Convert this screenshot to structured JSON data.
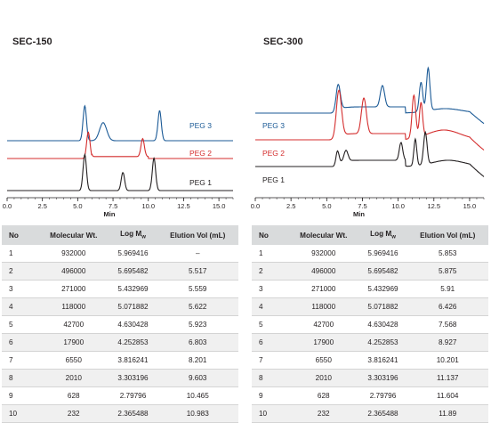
{
  "chart_data": [
    {
      "type": "line",
      "title": "SEC-150",
      "xlabel": "Min",
      "xlim": [
        0,
        16
      ],
      "x_ticks": [
        "0.0",
        "2.5",
        "5.0",
        "7.5",
        "10.0",
        "12.5",
        "15.0"
      ],
      "x_tick_values": [
        0,
        2.5,
        5,
        7.5,
        10,
        12.5,
        15
      ],
      "grid": false,
      "legend": "inline labels at right end of traces",
      "series": [
        {
          "name": "PEG 3",
          "color": "#1b5a96",
          "baseline": 3,
          "peaks": [
            [
              5.5,
              1.45,
              0.12
            ],
            [
              6.8,
              0.75,
              0.25
            ],
            [
              10.8,
              1.25,
              0.12
            ]
          ]
        },
        {
          "name": "PEG 2",
          "color": "#d42d2d",
          "baseline": 2,
          "peaks": [
            [
              5.75,
              1.1,
              0.12
            ],
            [
              9.6,
              0.75,
              0.12
            ]
          ]
        },
        {
          "name": "PEG 1",
          "color": "#231f20",
          "baseline": 0,
          "peaks": [
            [
              5.5,
              1.5,
              0.12
            ],
            [
              8.2,
              0.75,
              0.12
            ],
            [
              10.4,
              1.35,
              0.12
            ]
          ]
        }
      ]
    },
    {
      "type": "line",
      "title": "SEC-300",
      "xlabel": "Min",
      "xlim": [
        0,
        16
      ],
      "x_ticks": [
        "0.0",
        "2.5",
        "5.0",
        "7.5",
        "10.0",
        "12.5",
        "15.0"
      ],
      "x_tick_values": [
        0,
        2.5,
        5,
        7.5,
        10,
        12.5,
        15
      ],
      "grid": false,
      "legend": "inline labels at left of traces",
      "series": [
        {
          "name": "PEG 3",
          "color": "#1b5a96",
          "baseline": 4,
          "peaks": [
            [
              5.8,
              1.45,
              0.15
            ],
            [
              8.9,
              1.2,
              0.15
            ],
            [
              11.6,
              1.65,
              0.12
            ],
            [
              12.1,
              2.4,
              0.12
            ]
          ]
        },
        {
          "name": "PEG 2",
          "color": "#d42d2d",
          "baseline": 2,
          "peaks": [
            [
              5.85,
              2.6,
              0.18
            ],
            [
              7.6,
              2.0,
              0.17
            ],
            [
              11.1,
              2.4,
              0.13
            ],
            [
              11.6,
              1.9,
              0.11
            ]
          ]
        },
        {
          "name": "PEG 1",
          "color": "#231f20",
          "baseline": 0,
          "peaks": [
            [
              5.75,
              0.75,
              0.11
            ],
            [
              6.35,
              0.6,
              0.14
            ],
            [
              10.2,
              1.0,
              0.12
            ],
            [
              11.2,
              1.5,
              0.1
            ],
            [
              11.9,
              1.8,
              0.12
            ]
          ]
        }
      ]
    }
  ],
  "tables": {
    "left": {
      "headers": [
        "No",
        "Molecular Wt.",
        "Log M",
        "Elution Vol (mL)"
      ],
      "header_sub": "w",
      "rows": [
        [
          "1",
          "932000",
          "5.969416",
          "–"
        ],
        [
          "2",
          "496000",
          "5.695482",
          "5.517"
        ],
        [
          "3",
          "271000",
          "5.432969",
          "5.559"
        ],
        [
          "4",
          "118000",
          "5.071882",
          "5.622"
        ],
        [
          "5",
          "42700",
          "4.630428",
          "5.923"
        ],
        [
          "6",
          "17900",
          "4.252853",
          "6.803"
        ],
        [
          "7",
          "6550",
          "3.816241",
          "8.201"
        ],
        [
          "8",
          "2010",
          "3.303196",
          "9.603"
        ],
        [
          "9",
          "628",
          "2.79796",
          "10.465"
        ],
        [
          "10",
          "232",
          "2.365488",
          "10.983"
        ]
      ]
    },
    "right": {
      "headers": [
        "No",
        "Molecular Wt.",
        "Log M",
        "Elution Vol (mL)"
      ],
      "header_sub": "w",
      "rows": [
        [
          "1",
          "932000",
          "5.969416",
          "5.853"
        ],
        [
          "2",
          "496000",
          "5.695482",
          "5.875"
        ],
        [
          "3",
          "271000",
          "5.432969",
          "5.91"
        ],
        [
          "4",
          "118000",
          "5.071882",
          "6.426"
        ],
        [
          "5",
          "42700",
          "4.630428",
          "7.568"
        ],
        [
          "6",
          "17900",
          "4.252853",
          "8.927"
        ],
        [
          "7",
          "6550",
          "3.816241",
          "10.201"
        ],
        [
          "8",
          "2010",
          "3.303196",
          "11.137"
        ],
        [
          "9",
          "628",
          "2.79796",
          "11.604"
        ],
        [
          "10",
          "232",
          "2.365488",
          "11.89"
        ]
      ]
    }
  }
}
